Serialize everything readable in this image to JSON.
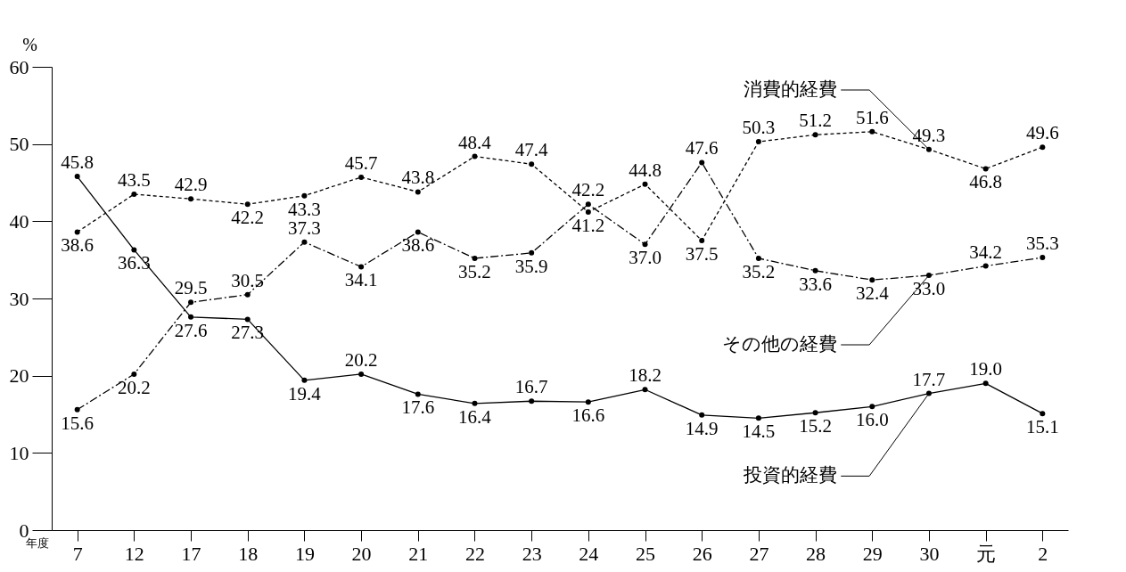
{
  "chart_data": {
    "type": "line",
    "ylabel": "%",
    "xlabel": "年度",
    "categories": [
      "7",
      "12",
      "17",
      "18",
      "19",
      "20",
      "21",
      "22",
      "23",
      "24",
      "25",
      "26",
      "27",
      "28",
      "29",
      "30",
      "元",
      "2"
    ],
    "ylim": [
      0,
      60
    ],
    "yticks": [
      0,
      10,
      20,
      30,
      40,
      50,
      60
    ],
    "grid": false,
    "marker": "circle",
    "series": [
      {
        "name": "消費的経費",
        "color": "#000000",
        "line_style": "dotted",
        "values": [
          38.6,
          43.5,
          42.9,
          42.2,
          43.3,
          45.7,
          43.8,
          48.4,
          47.4,
          41.2,
          44.8,
          37.5,
          50.3,
          51.2,
          51.6,
          49.3,
          46.8,
          49.6
        ],
        "value_labels": [
          "38.6",
          "43.5",
          "42.9",
          "42.2",
          "43.3",
          "45.7",
          "43.8",
          "48.4",
          "47.4",
          "41.2",
          "44.8",
          "37.5",
          "50.3",
          "51.2",
          "51.6",
          "49.3",
          "46.8",
          "49.6"
        ]
      },
      {
        "name": "その他の経費",
        "color": "#000000",
        "line_style": "dashed",
        "values": [
          15.6,
          20.2,
          29.5,
          30.5,
          37.3,
          34.1,
          38.6,
          35.2,
          35.9,
          42.2,
          37.0,
          47.6,
          35.2,
          33.6,
          32.4,
          33.0,
          34.2,
          35.3
        ],
        "value_labels": [
          "15.6",
          "20.2",
          "29.5",
          "30.5",
          "37.3",
          "34.1",
          "38.6",
          "35.2",
          "35.9",
          "42.2",
          "37.0",
          "47.6",
          "35.2",
          "33.6",
          "32.4",
          "33.0",
          "34.2",
          "35.3"
        ]
      },
      {
        "name": "投資的経費",
        "color": "#000000",
        "line_style": "solid",
        "values": [
          45.8,
          36.3,
          27.6,
          27.3,
          19.4,
          20.2,
          17.6,
          16.4,
          16.7,
          16.6,
          18.2,
          14.9,
          14.5,
          15.2,
          16.0,
          17.7,
          19.0,
          15.1
        ],
        "value_labels": [
          "45.8",
          "36.3",
          "27.6",
          "27.3",
          "19.4",
          "20.2",
          "17.6",
          "16.4",
          "16.7",
          "16.6",
          "18.2",
          "14.9",
          "14.5",
          "15.2",
          "16.0",
          "17.7",
          "19.0",
          "15.1"
        ]
      }
    ]
  }
}
